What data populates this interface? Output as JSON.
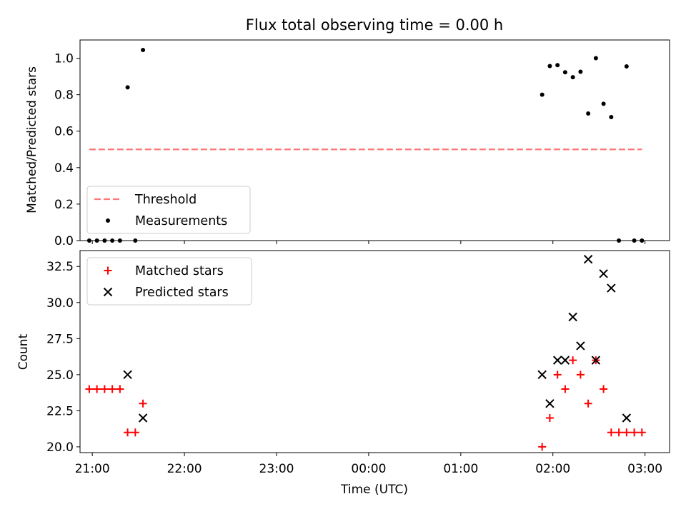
{
  "chart_data": [
    {
      "type": "scatter",
      "title": "Flux total observing time = 0.00 h",
      "xlabel": "",
      "ylabel": "Matched/Predicted stars",
      "xlim": [
        "20:52",
        "03:16"
      ],
      "ylim": [
        0,
        1.1
      ],
      "x_ticks": [
        "21:00",
        "22:00",
        "23:00",
        "00:00",
        "01:00",
        "02:00",
        "03:00"
      ],
      "y_ticks": [
        "0.0",
        "0.2",
        "0.4",
        "0.6",
        "0.8",
        "1.0"
      ],
      "legend_position": "lower-left",
      "series": [
        {
          "name": "Threshold",
          "style": "dashed-line",
          "color": "#ff7777",
          "x": [
            "20:58",
            "02:58"
          ],
          "y": [
            0.5,
            0.5
          ]
        },
        {
          "name": "Measurements",
          "style": "dot",
          "color": "#000000",
          "x": [
            "20:58",
            "21:03",
            "21:08",
            "21:13",
            "21:18",
            "21:23",
            "21:28",
            "21:33",
            "01:53",
            "01:58",
            "02:03",
            "02:08",
            "02:13",
            "02:18",
            "02:23",
            "02:28",
            "02:33",
            "02:38",
            "02:43",
            "02:48",
            "02:53",
            "02:58"
          ],
          "y": [
            0.0,
            0.0,
            0.0,
            0.0,
            0.0,
            0.84,
            0.0,
            1.045,
            0.8,
            0.957,
            0.962,
            0.923,
            0.896,
            0.926,
            0.697,
            1.0,
            0.75,
            0.677,
            0.0,
            0.955,
            0.0,
            0.0
          ]
        }
      ]
    },
    {
      "type": "scatter",
      "title": "",
      "xlabel": "Time (UTC)",
      "ylabel": "Count",
      "xlim": [
        "20:52",
        "03:16"
      ],
      "ylim": [
        19.6,
        33.6
      ],
      "x_ticks": [
        "21:00",
        "22:00",
        "23:00",
        "00:00",
        "01:00",
        "02:00",
        "03:00"
      ],
      "y_ticks": [
        "20.0",
        "22.5",
        "25.0",
        "27.5",
        "30.0",
        "32.5"
      ],
      "legend_position": "upper-left",
      "series": [
        {
          "name": "Matched stars",
          "style": "plus",
          "color": "#ff0000",
          "x": [
            "20:58",
            "21:03",
            "21:08",
            "21:13",
            "21:18",
            "21:23",
            "21:28",
            "21:33",
            "01:53",
            "01:58",
            "02:03",
            "02:08",
            "02:13",
            "02:18",
            "02:23",
            "02:28",
            "02:33",
            "02:38",
            "02:43",
            "02:48",
            "02:53",
            "02:58"
          ],
          "y": [
            24,
            24,
            24,
            24,
            24,
            21,
            21,
            23,
            20,
            22,
            25,
            24,
            26,
            25,
            23,
            26,
            24,
            21,
            21,
            21,
            21,
            21
          ]
        },
        {
          "name": "Predicted stars",
          "style": "x",
          "color": "#000000",
          "x": [
            "21:23",
            "21:33",
            "01:53",
            "01:58",
            "02:03",
            "02:08",
            "02:13",
            "02:18",
            "02:23",
            "02:28",
            "02:33",
            "02:38",
            "02:48"
          ],
          "y": [
            25,
            22,
            25,
            23,
            26,
            26,
            29,
            27,
            33,
            26,
            32,
            31,
            22
          ]
        }
      ]
    }
  ]
}
